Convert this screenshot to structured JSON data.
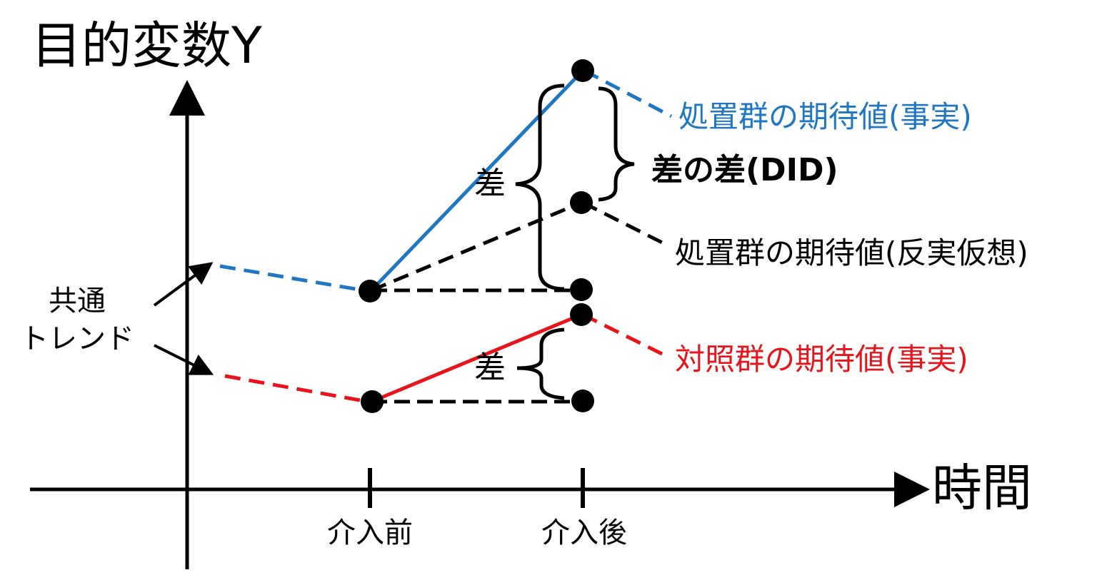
{
  "y_axis_label": "目的変数Y",
  "x_axis_label": "時間",
  "ticks": {
    "before": "介入前",
    "after": "介入後"
  },
  "common_trend": {
    "line1": "共通",
    "line2": "トレンド"
  },
  "diff_label_top": "差",
  "diff_label_bottom": "差",
  "did_label": "差の差(DID)",
  "labels": {
    "treated_fact": "処置群の期待値(事実)",
    "treated_counterfactual": "処置群の期待値(反実仮想)",
    "control_fact": "対照群の期待値(事実)"
  },
  "colors": {
    "treated": "#1f77c4",
    "control": "#e8141c",
    "counterfactual": "#000000",
    "axis": "#000000"
  }
}
